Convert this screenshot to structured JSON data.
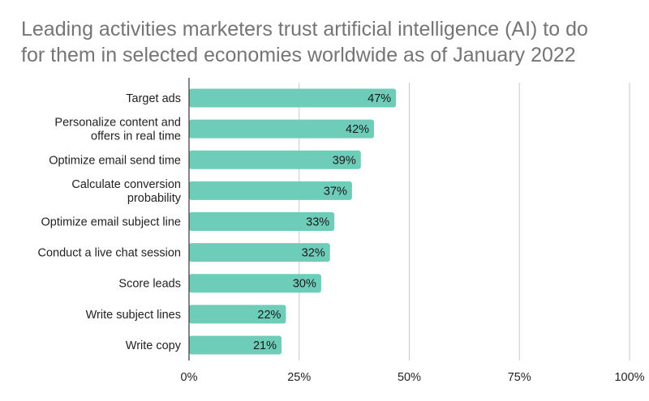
{
  "chart_data": {
    "type": "bar",
    "orientation": "horizontal",
    "title_lines": [
      "Leading activities marketers trust artificial intelligence (AI) to do",
      "for them in selected economies worldwide as of January 2022"
    ],
    "categories": [
      [
        "Target ads"
      ],
      [
        "Personalize content and",
        "offers in real time"
      ],
      [
        "Optimize email send time"
      ],
      [
        "Calculate conversion",
        "probability"
      ],
      [
        "Optimize email subject line"
      ],
      [
        "Conduct a live chat session"
      ],
      [
        "Score leads"
      ],
      [
        "Write subject lines"
      ],
      [
        "Write copy"
      ]
    ],
    "values": [
      47,
      42,
      39,
      37,
      33,
      32,
      30,
      22,
      21
    ],
    "data_labels": [
      "47%",
      "42%",
      "39%",
      "37%",
      "33%",
      "32%",
      "30%",
      "22%",
      "21%"
    ],
    "xlim": [
      0,
      100
    ],
    "ticks": [
      0,
      25,
      50,
      75,
      100
    ],
    "tick_labels": [
      "0%",
      "25%",
      "50%",
      "75%",
      "100%"
    ],
    "grid": true,
    "bar_color": "#6dcdb8",
    "grid_color": "#c8c8c8",
    "axis_color": "#333333"
  }
}
